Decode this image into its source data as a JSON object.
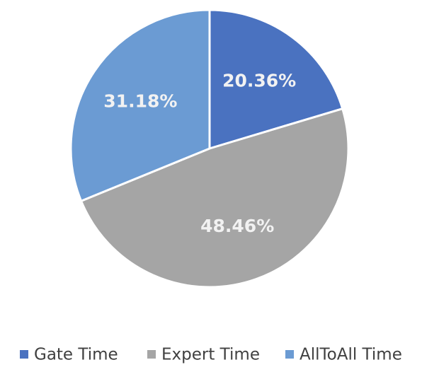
{
  "chart_data": {
    "type": "pie",
    "categories": [
      "Gate Time",
      "Expert Time",
      "AllToAll Time"
    ],
    "values": [
      20.36,
      48.46,
      31.18
    ],
    "value_labels": [
      "20.36%",
      "48.46%",
      "31.18%"
    ],
    "colors": [
      "#4a72c0",
      "#a5a5a5",
      "#6b9bd3"
    ],
    "legend": "bottom"
  }
}
